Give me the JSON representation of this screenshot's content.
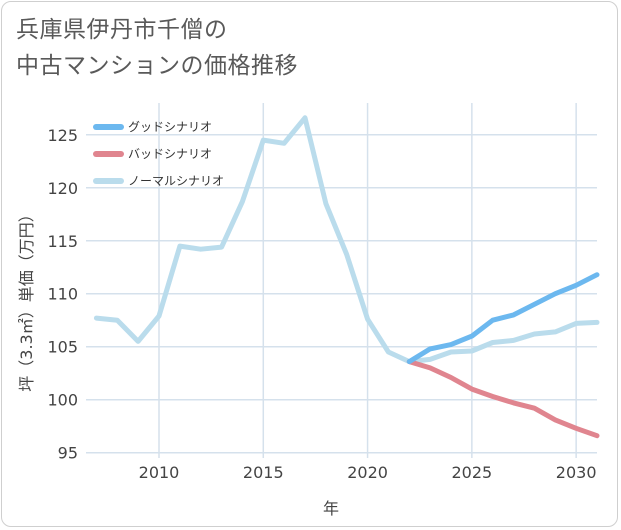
{
  "title": {
    "line1": "兵庫県伊丹市千僧の",
    "line2": "中古マンションの価格推移"
  },
  "chart_data": {
    "type": "line",
    "title": "兵庫県伊丹市千僧の中古マンションの価格推移",
    "xlabel": "年",
    "ylabel": "坪（3.3㎡）単価（万円）",
    "xlim": [
      2006.5,
      2031
    ],
    "ylim": [
      94.5,
      128
    ],
    "xticks": [
      2010,
      2015,
      2020,
      2025,
      2030
    ],
    "yticks": [
      95,
      100,
      105,
      110,
      115,
      120,
      125
    ],
    "grid": true,
    "legend_position": "top-left",
    "series": [
      {
        "name": "グッドシナリオ",
        "color": "#6cb8ef",
        "x": [
          2022,
          2023,
          2024,
          2025,
          2026,
          2027,
          2028,
          2029,
          2030,
          2031
        ],
        "values": [
          103.6,
          104.8,
          105.2,
          106.0,
          107.5,
          108.0,
          109.0,
          110.0,
          110.8,
          111.8
        ]
      },
      {
        "name": "バッドシナリオ",
        "color": "#e0858f",
        "x": [
          2022,
          2023,
          2024,
          2025,
          2026,
          2027,
          2028,
          2029,
          2030,
          2031
        ],
        "values": [
          103.6,
          103.0,
          102.1,
          101.0,
          100.3,
          99.7,
          99.2,
          98.1,
          97.3,
          96.6
        ]
      },
      {
        "name": "ノーマルシナリオ",
        "color": "#badcec",
        "x": [
          2007,
          2008,
          2009,
          2010,
          2011,
          2012,
          2013,
          2014,
          2015,
          2016,
          2017,
          2018,
          2019,
          2020,
          2021,
          2022,
          2023,
          2024,
          2025,
          2026,
          2027,
          2028,
          2029,
          2030,
          2031
        ],
        "values": [
          107.7,
          107.5,
          105.5,
          107.9,
          114.5,
          114.2,
          114.4,
          118.7,
          124.5,
          124.2,
          126.6,
          118.5,
          113.7,
          107.6,
          104.5,
          103.6,
          103.8,
          104.5,
          104.6,
          105.4,
          105.6,
          106.2,
          106.4,
          107.2,
          107.3
        ]
      }
    ]
  }
}
